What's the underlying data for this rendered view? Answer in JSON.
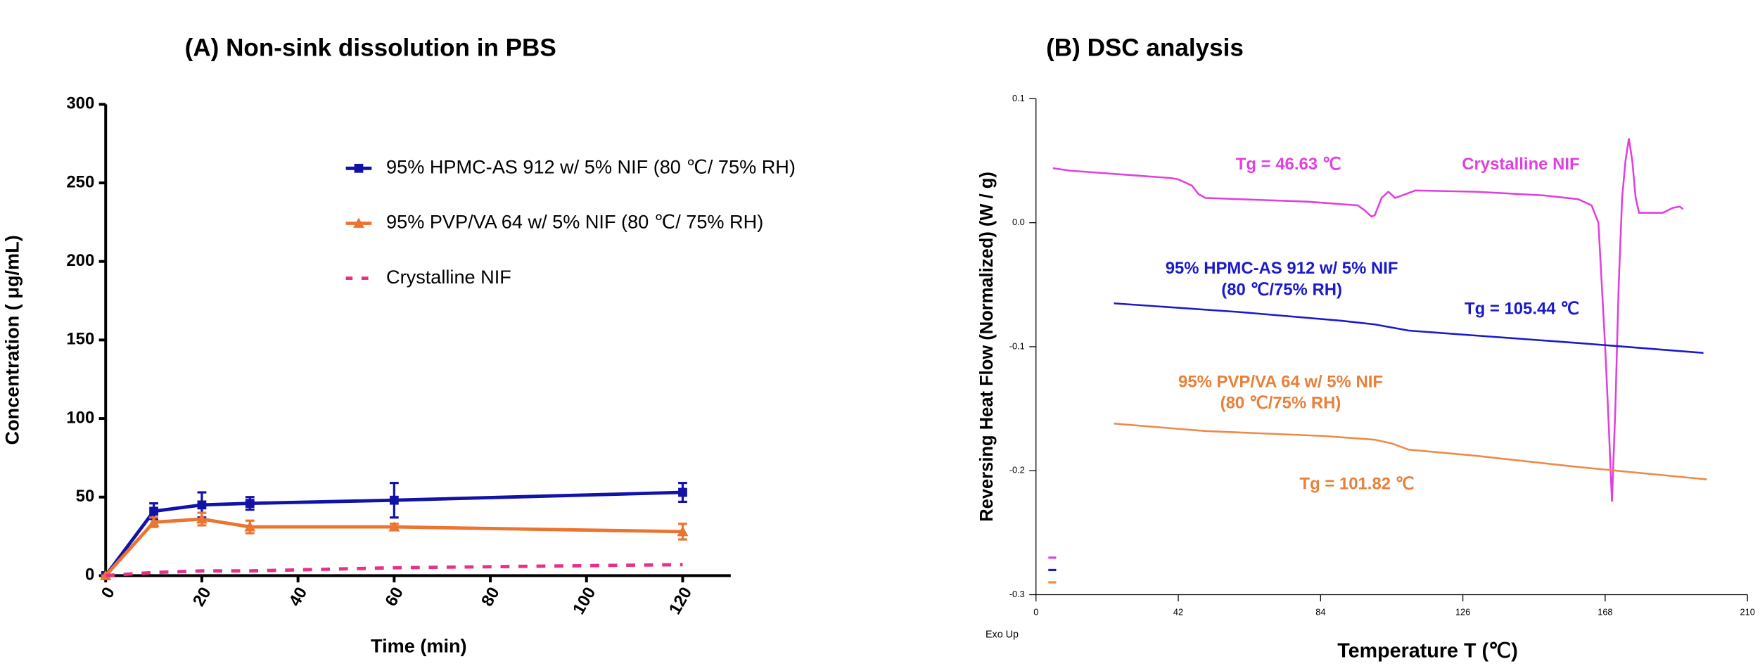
{
  "chart_data": [
    {
      "type": "line",
      "title": "(A) Non-sink dissolution in PBS",
      "x_label": "Time (min)",
      "y_label": "Concentration ( μg/mL)",
      "x": [
        0,
        10,
        20,
        30,
        60,
        120
      ],
      "xlim": [
        0,
        130
      ],
      "xticks": [
        0,
        20,
        40,
        60,
        80,
        100,
        120
      ],
      "ylim": [
        0,
        300
      ],
      "yticks": [
        0,
        50,
        100,
        150,
        200,
        250,
        300
      ],
      "series": [
        {
          "name": "95% HPMC-AS 912 w/ 5% NIF (80 ℃/ 75% RH)",
          "color": "#1212a6",
          "marker": "square",
          "style": "solid",
          "values": [
            0,
            41,
            45,
            46,
            48,
            53
          ],
          "errors": [
            0,
            5,
            8,
            4,
            11,
            6
          ]
        },
        {
          "name": "95% PVP/VA 64 w/ 5% NIF (80 ℃/ 75% RH)",
          "color": "#ea7430",
          "marker": "triangle",
          "style": "solid",
          "values": [
            0,
            34,
            36,
            31,
            31,
            28
          ],
          "errors": [
            0,
            3,
            4,
            4,
            2,
            5
          ]
        },
        {
          "name": "Crystalline NIF",
          "color": "#e8308a",
          "marker": "none",
          "style": "dashed",
          "values": [
            0,
            2,
            3,
            3,
            5,
            7
          ]
        }
      ]
    },
    {
      "type": "line",
      "title": "(B) DSC analysis",
      "x_label": "Temperature T (℃)",
      "y_label": "Reversing Heat Flow (Normalized) (W / g)",
      "corner_note": "Exo Up",
      "xlim": [
        0,
        210
      ],
      "xticks": [
        0,
        42,
        84,
        126,
        168,
        210
      ],
      "ylim": [
        -0.3,
        0.1
      ],
      "yticks": [
        0.1,
        {
          "value": 0,
          "label": "0.0"
        },
        -0.1,
        -0.2,
        -0.3
      ],
      "series": [
        {
          "color": "#e040e0",
          "x": [
            5,
            10,
            20,
            30,
            40,
            42,
            46,
            48,
            50,
            60,
            80,
            95,
            97,
            99,
            100,
            102,
            104,
            106,
            108,
            112,
            130,
            150,
            160,
            164,
            166,
            167,
            168,
            169,
            170,
            171,
            172,
            173,
            174,
            175,
            176,
            177,
            178,
            185,
            188,
            190,
            191
          ],
          "values": [
            0.044,
            0.042,
            0.04,
            0.038,
            0.036,
            0.035,
            0.03,
            0.023,
            0.02,
            0.019,
            0.017,
            0.014,
            0.01,
            0.005,
            0.006,
            0.02,
            0.025,
            0.02,
            0.022,
            0.026,
            0.025,
            0.022,
            0.019,
            0.014,
            0.0,
            -0.05,
            -0.1,
            -0.16,
            -0.225,
            -0.15,
            -0.05,
            0.02,
            0.05,
            0.068,
            0.05,
            0.02,
            0.008,
            0.008,
            0.012,
            0.013,
            0.011
          ]
        },
        {
          "color": "#1a1acc",
          "x": [
            23,
            60,
            90,
            100,
            110,
            130,
            160,
            197
          ],
          "values": [
            -0.065,
            -0.072,
            -0.079,
            -0.082,
            -0.087,
            -0.091,
            -0.097,
            -0.105
          ]
        },
        {
          "color": "#ee8a48",
          "x": [
            23,
            50,
            85,
            100,
            105,
            110,
            130,
            160,
            198
          ],
          "values": [
            -0.162,
            -0.168,
            -0.172,
            -0.175,
            -0.178,
            -0.183,
            -0.188,
            -0.197,
            -0.207
          ]
        }
      ],
      "annotations": [
        {
          "text": "Tg = 46.63 ℃",
          "color": "#e040e0"
        },
        {
          "text": "Crystalline NIF",
          "color": "#e040e0"
        },
        {
          "text": "95% HPMC-AS 912 w/ 5% NIF",
          "color": "#1a1acc"
        },
        {
          "text": "(80 ℃/75% RH)",
          "color": "#1a1acc"
        },
        {
          "text": "Tg = 105.44 ℃",
          "color": "#1a1acc"
        },
        {
          "text": "95% PVP/VA 64 w/ 5% NIF",
          "color": "#e8803a"
        },
        {
          "text": "(80 ℃/75% RH)",
          "color": "#e8803a"
        },
        {
          "text": "Tg = 101.82 ℃",
          "color": "#e8803a"
        }
      ]
    }
  ]
}
